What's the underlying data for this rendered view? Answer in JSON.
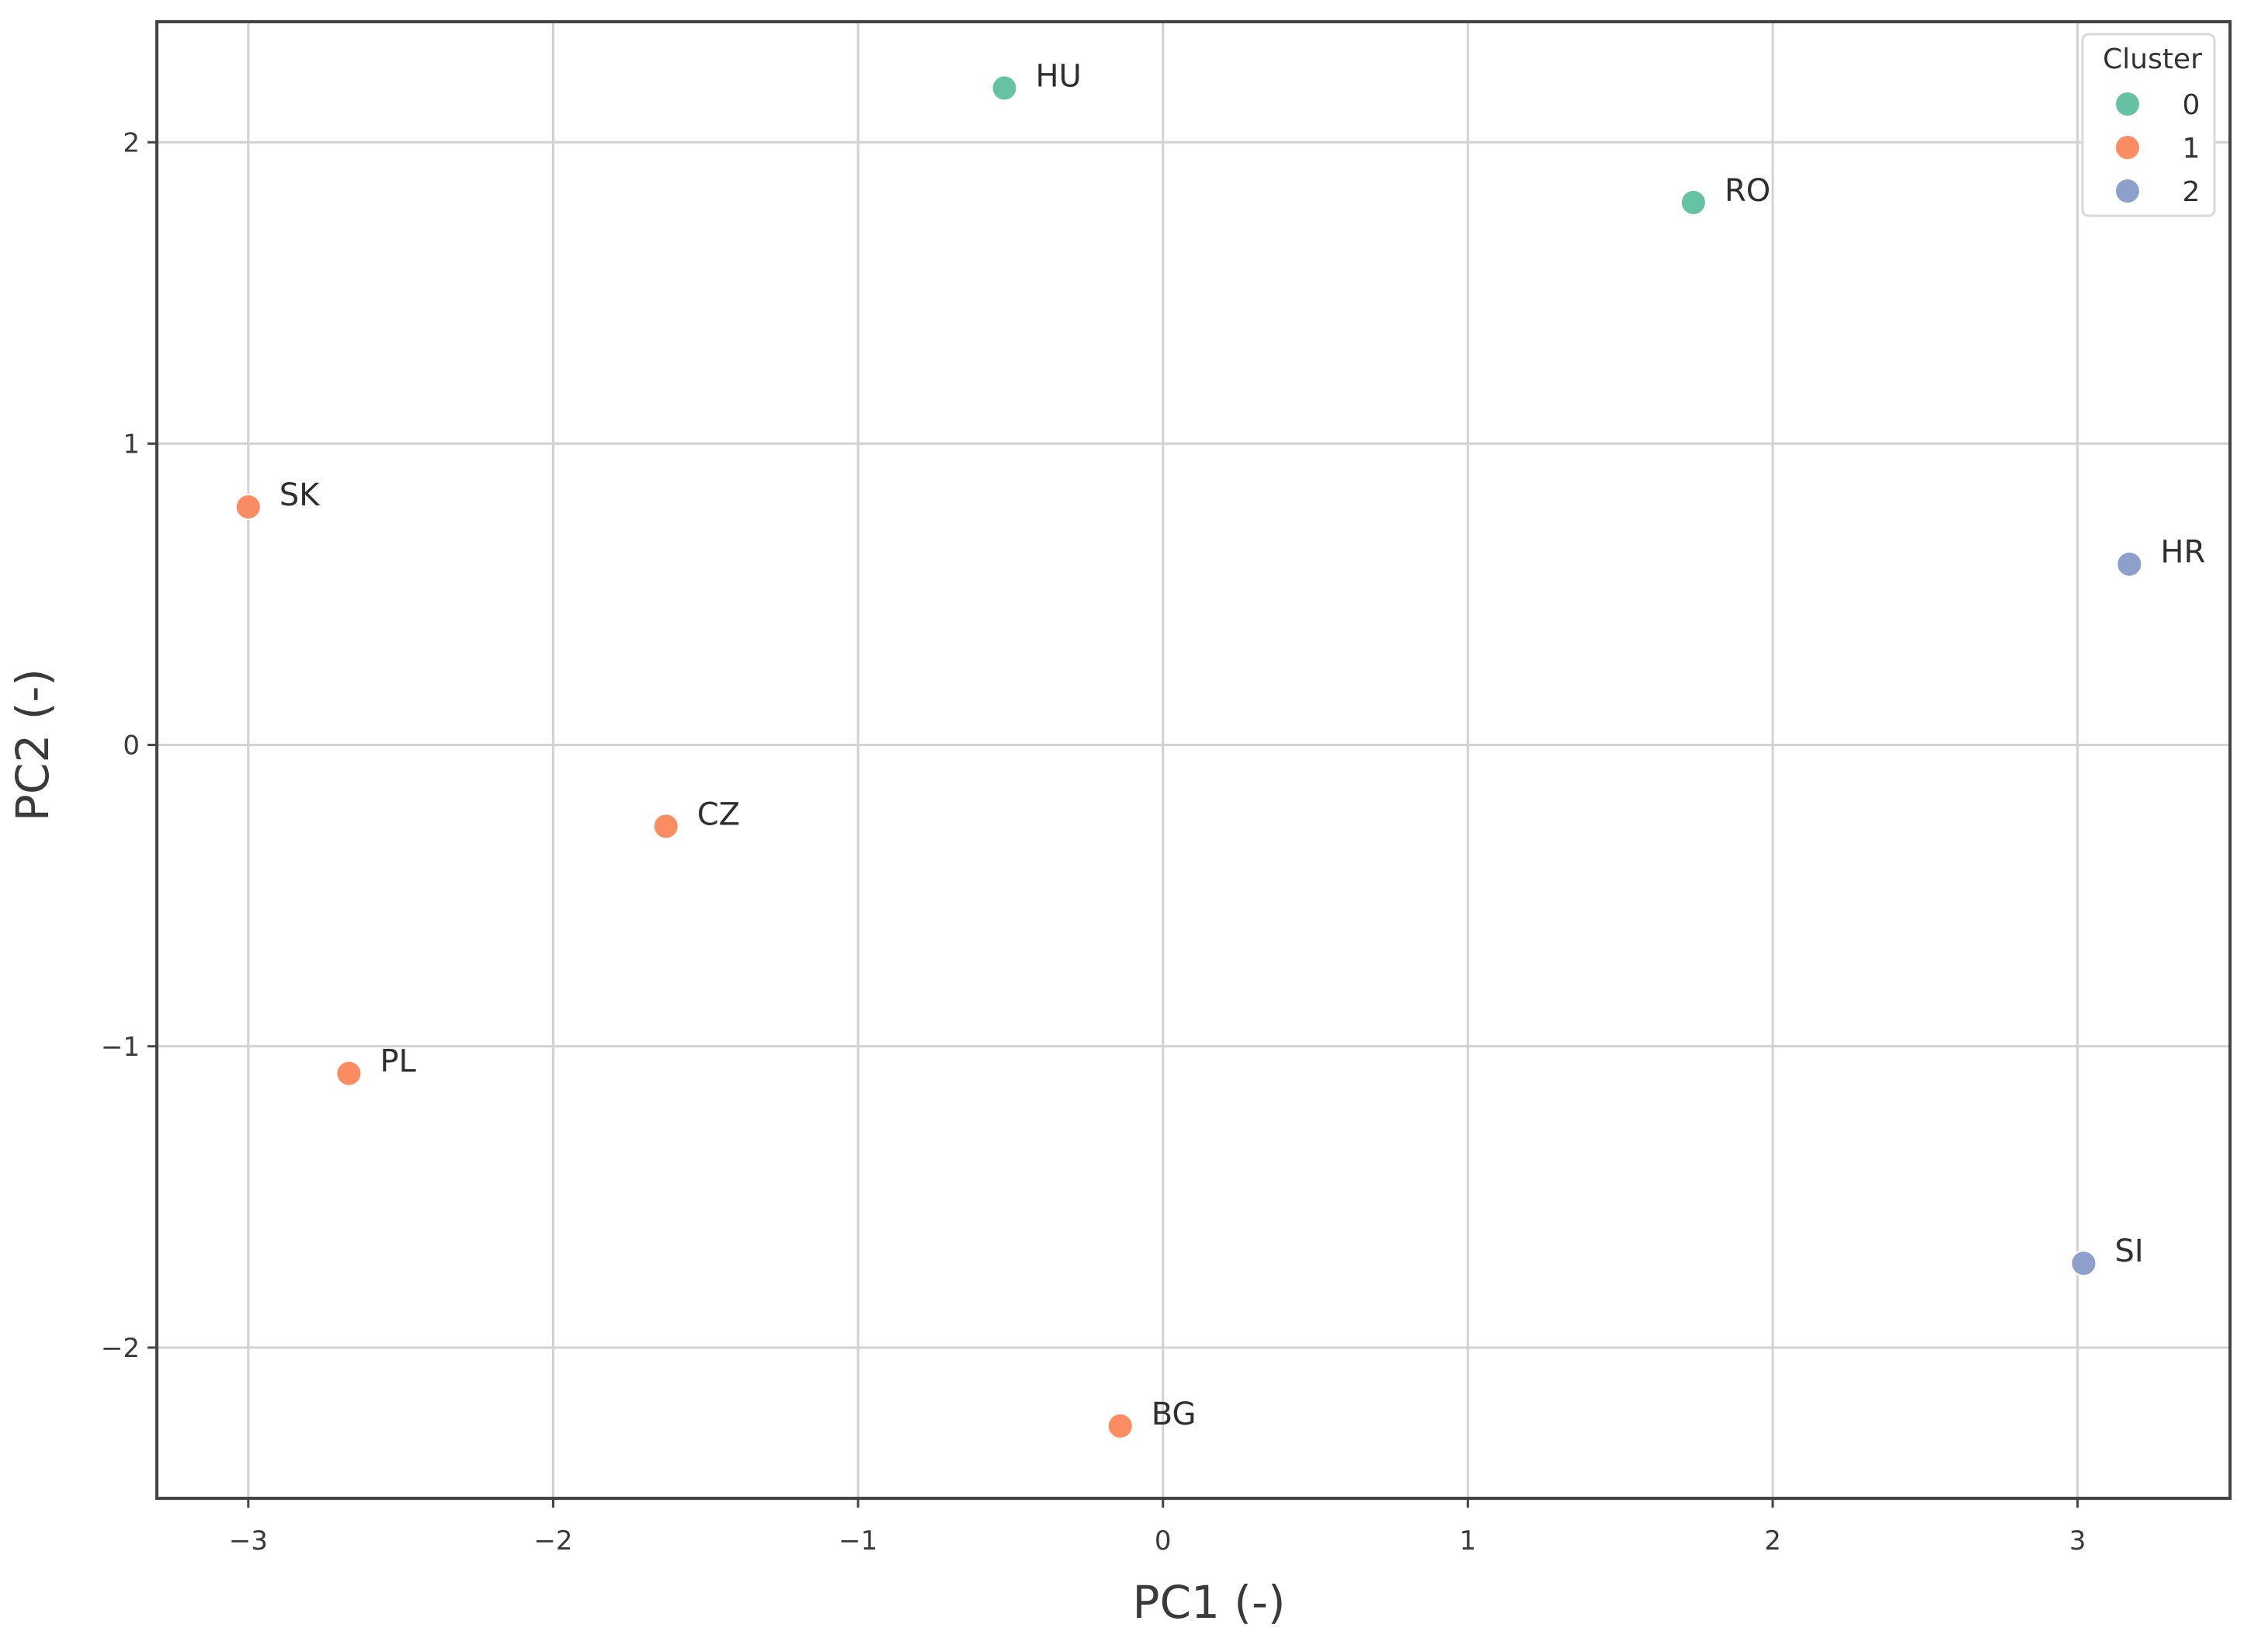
{
  "chart_data": {
    "type": "scatter",
    "title": "",
    "xlabel": "PC1 (-)",
    "ylabel": "PC2 (-)",
    "xlim": [
      -3.3,
      3.5
    ],
    "ylim": [
      -2.5,
      2.4
    ],
    "xticks": [
      -3,
      -2,
      -1,
      0,
      1,
      2,
      3
    ],
    "yticks": [
      -2,
      -1,
      0,
      1,
      2
    ],
    "xtick_labels": [
      "−3",
      "−2",
      "−1",
      "0",
      "1",
      "2",
      "3"
    ],
    "ytick_labels": [
      "−2",
      "−1",
      "0",
      "1",
      "2"
    ],
    "grid": true,
    "legend": {
      "title": "Cluster",
      "placement": "top-right",
      "entries": [
        {
          "label": "0",
          "color": "#66c2a5"
        },
        {
          "label": "1",
          "color": "#fc8d62"
        },
        {
          "label": "2",
          "color": "#8da0cb"
        }
      ]
    },
    "points": [
      {
        "label": "HU",
        "x": -0.52,
        "y": 2.18,
        "cluster": 0
      },
      {
        "label": "RO",
        "x": 1.74,
        "y": 1.8,
        "cluster": 0
      },
      {
        "label": "SK",
        "x": -3.0,
        "y": 0.79,
        "cluster": 1
      },
      {
        "label": "CZ",
        "x": -1.63,
        "y": -0.27,
        "cluster": 1
      },
      {
        "label": "PL",
        "x": -2.67,
        "y": -1.09,
        "cluster": 1
      },
      {
        "label": "BG",
        "x": -0.14,
        "y": -2.26,
        "cluster": 1
      },
      {
        "label": "HR",
        "x": 3.17,
        "y": 0.6,
        "cluster": 2
      },
      {
        "label": "SI",
        "x": 3.02,
        "y": -1.72,
        "cluster": 2
      }
    ]
  }
}
